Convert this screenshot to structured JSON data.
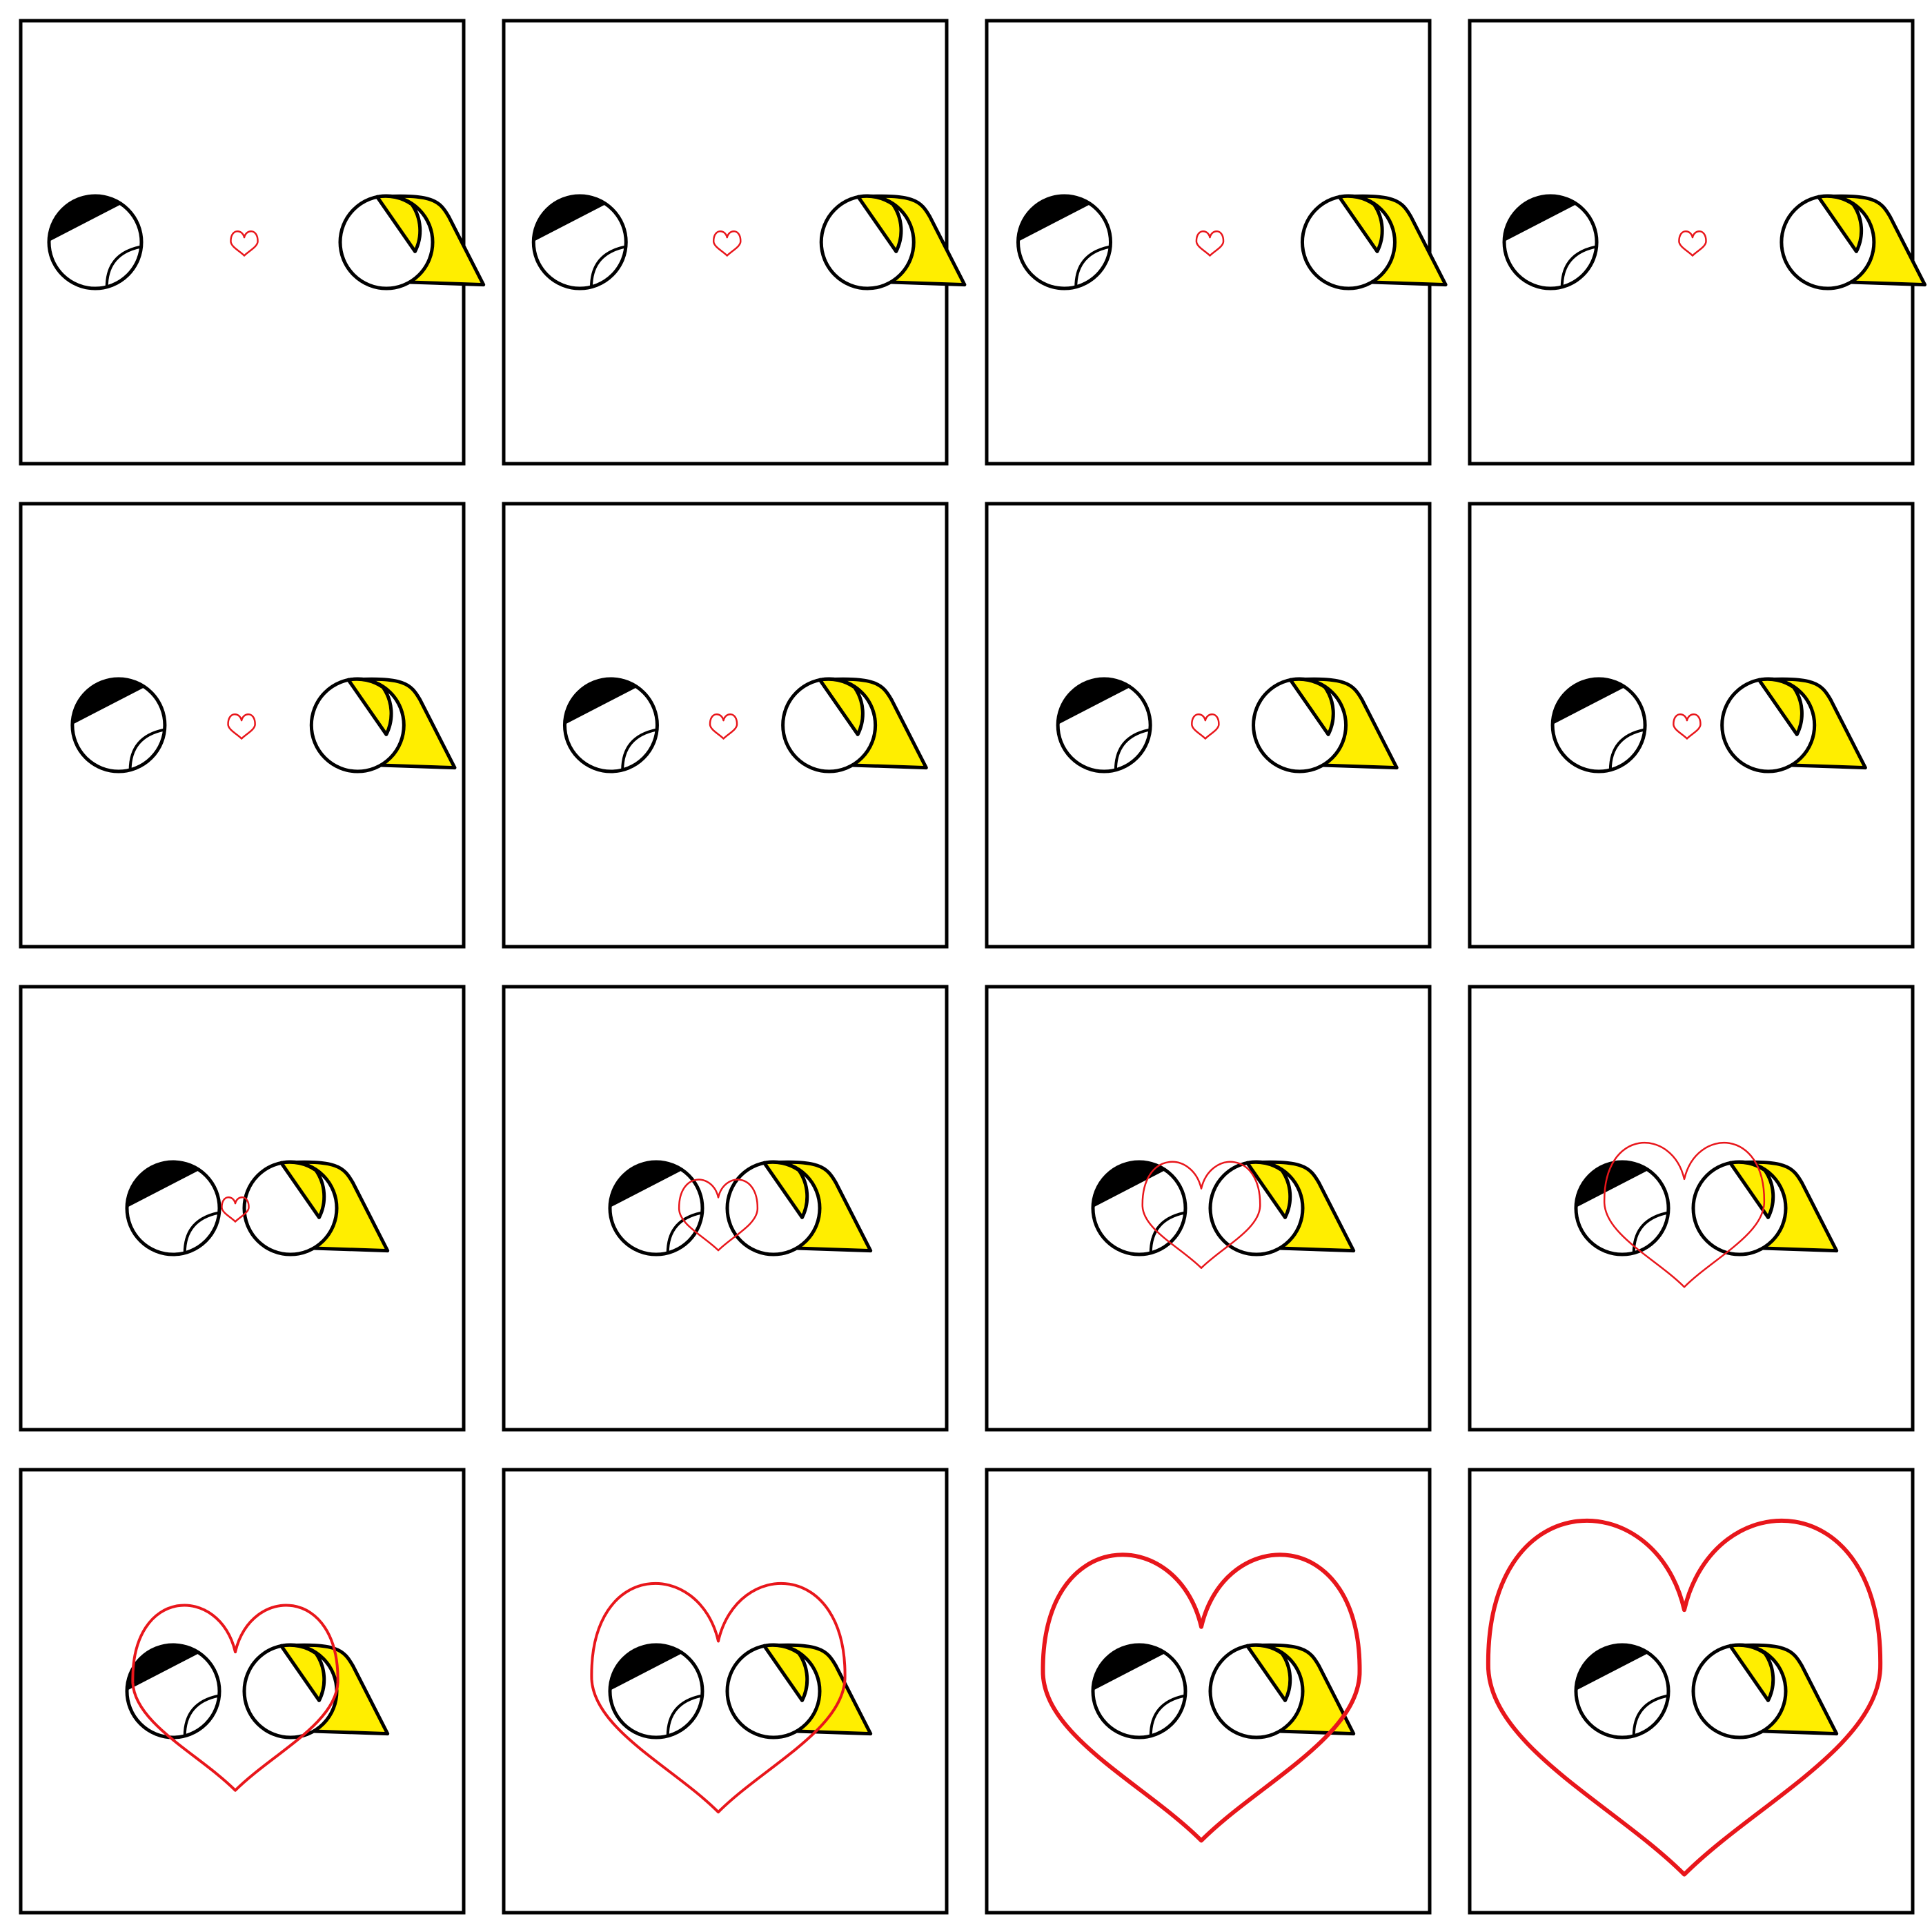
{
  "colors": {
    "background": "#ffffff",
    "frame_stroke": "#000000",
    "hair": "#000000",
    "blonde_hair": "#ffee00",
    "heart": "#e8161b"
  },
  "storyboard": {
    "rows": 4,
    "columns": 4,
    "frames": [
      {
        "scene": "apart",
        "approach": 0.0,
        "heart_scale": 1.0
      },
      {
        "scene": "apart",
        "approach": 0.02,
        "heart_scale": 1.0
      },
      {
        "scene": "apart",
        "approach": 0.04,
        "heart_scale": 1.0
      },
      {
        "scene": "apart",
        "approach": 0.08,
        "heart_scale": 1.0
      },
      {
        "scene": "approaching",
        "approach": 0.3,
        "heart_scale": 1.0
      },
      {
        "scene": "approaching",
        "approach": 0.42,
        "heart_scale": 1.0
      },
      {
        "scene": "approaching",
        "approach": 0.55,
        "heart_scale": 1.0
      },
      {
        "scene": "approaching",
        "approach": 0.7,
        "heart_scale": 1.0
      },
      {
        "scene": "together",
        "approach": 1.0,
        "heart_scale": 1.0
      },
      {
        "scene": "heart-grows",
        "approach": 1.0,
        "heart_scale": 2.6
      },
      {
        "scene": "heart-grows",
        "approach": 1.0,
        "heart_scale": 3.9
      },
      {
        "scene": "heart-grows",
        "approach": 1.0,
        "heart_scale": 5.3
      },
      {
        "scene": "heart-grows",
        "approach": 1.0,
        "heart_scale": 6.8
      },
      {
        "scene": "heart-grows",
        "approach": 1.0,
        "heart_scale": 8.4
      },
      {
        "scene": "heart-grows",
        "approach": 1.0,
        "heart_scale": 10.5
      },
      {
        "scene": "heart-grows",
        "approach": 1.0,
        "heart_scale": 13.0
      }
    ]
  }
}
